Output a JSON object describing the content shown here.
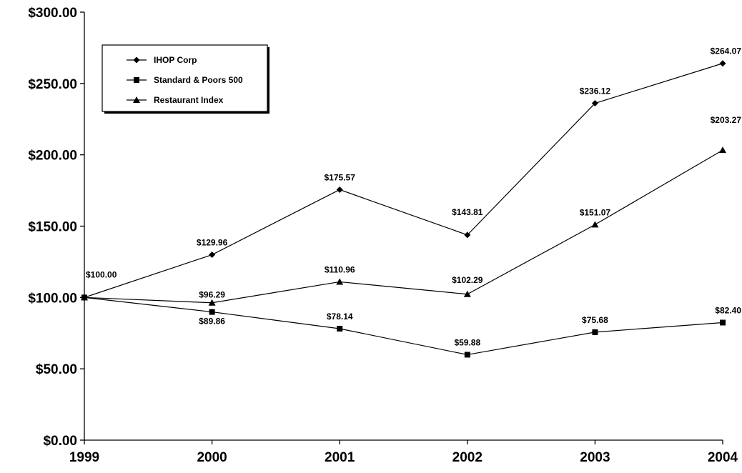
{
  "chart_data": {
    "type": "line",
    "title": "",
    "xlabel": "",
    "ylabel": "",
    "categories": [
      "1999",
      "2000",
      "2001",
      "2002",
      "2003",
      "2004"
    ],
    "ylim": [
      0,
      300
    ],
    "yticks": [
      "$0.00",
      "$50.00",
      "$100.00",
      "$150.00",
      "$200.00",
      "$250.00",
      "$300.00"
    ],
    "ytick_values": [
      0,
      50,
      100,
      150,
      200,
      250,
      300
    ],
    "grid": false,
    "legend_position": "top-left",
    "series": [
      {
        "name": "IHOP Corp",
        "marker": "diamond",
        "values": [
          100.0,
          129.96,
          175.57,
          143.81,
          236.12,
          264.07
        ],
        "labels": [
          "$100.00",
          "$129.96",
          "$175.57",
          "$143.81",
          "$236.12",
          "$264.07"
        ]
      },
      {
        "name": "Standard & Poors 500",
        "marker": "square",
        "values": [
          100.0,
          89.86,
          78.14,
          59.88,
          75.68,
          82.4
        ],
        "labels": [
          "",
          "$89.86",
          "$78.14",
          "$59.88",
          "$75.68",
          "$82.40"
        ]
      },
      {
        "name": "Restaurant Index",
        "marker": "triangle",
        "values": [
          100.0,
          96.29,
          110.96,
          102.29,
          151.07,
          203.27
        ],
        "labels": [
          "",
          "$96.29",
          "$110.96",
          "$102.29",
          "$151.07",
          "$203.27"
        ]
      }
    ]
  }
}
